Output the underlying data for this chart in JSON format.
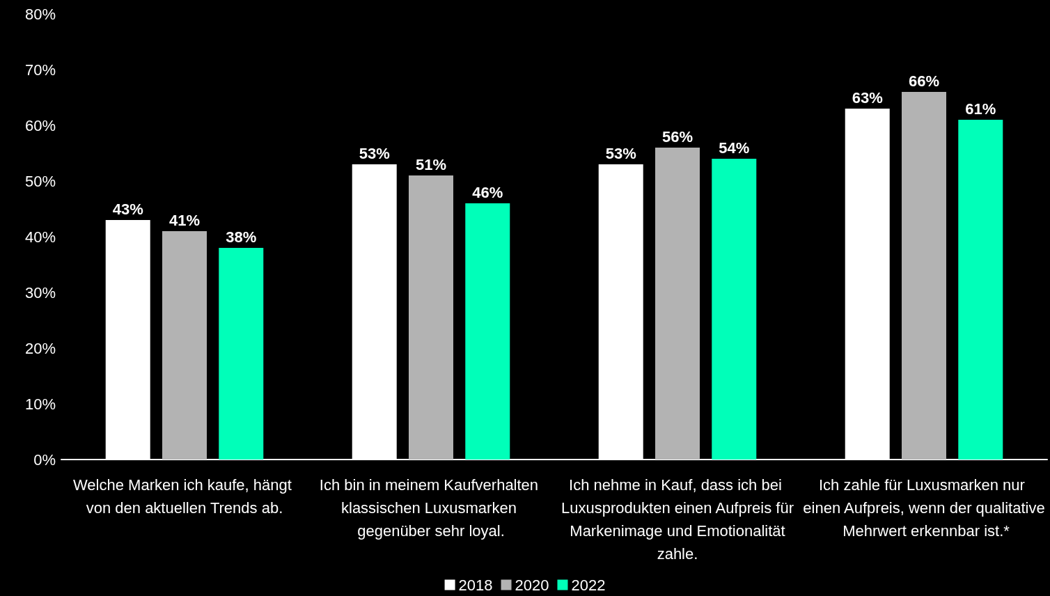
{
  "chart_data": {
    "type": "bar",
    "categories": [
      "Welche Marken ich kaufe, hängt von den aktuellen Trends ab.",
      "Ich bin in meinem Kaufverhalten klassischen Luxusmarken gegenüber sehr loyal.",
      "Ich nehme in Kauf, dass ich bei Luxusprodukten einen Aufpreis für Markenimage und Emotionalität zahle.",
      "Ich zahle für Luxusmarken nur einen Aufpreis, wenn der qualitative Mehrwert erkennbar ist.*"
    ],
    "series": [
      {
        "name": "2018",
        "color": "#ffffff",
        "values": [
          43,
          53,
          53,
          63
        ],
        "value_labels": [
          "43%",
          "53%",
          "53%",
          "63%"
        ]
      },
      {
        "name": "2020",
        "color": "#b3b3b3",
        "values": [
          41,
          51,
          56,
          66
        ],
        "value_labels": [
          "41%",
          "51%",
          "56%",
          "66%"
        ]
      },
      {
        "name": "2022",
        "color": "#00ffb9",
        "values": [
          38,
          46,
          54,
          61
        ],
        "value_labels": [
          "38%",
          "46%",
          "54%",
          "61%"
        ]
      }
    ],
    "ylim": [
      0,
      80
    ],
    "yticks": [
      {
        "value": 0,
        "label": "0%"
      },
      {
        "value": 10,
        "label": "10%"
      },
      {
        "value": 20,
        "label": "20%"
      },
      {
        "value": 30,
        "label": "30%"
      },
      {
        "value": 40,
        "label": "40%"
      },
      {
        "value": 50,
        "label": "50%"
      },
      {
        "value": 60,
        "label": "60%"
      },
      {
        "value": 70,
        "label": "70%"
      },
      {
        "value": 80,
        "label": "80%"
      }
    ],
    "grid": false,
    "legend": "bottom"
  }
}
